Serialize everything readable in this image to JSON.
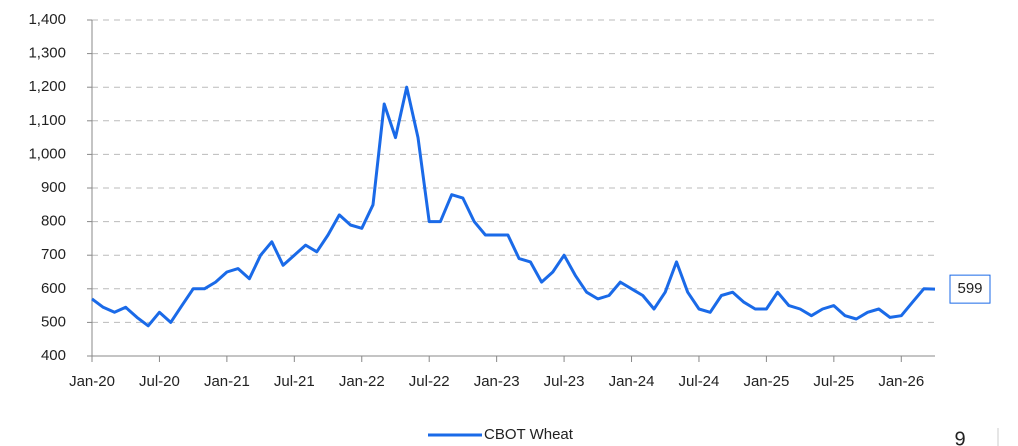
{
  "chart_data": {
    "type": "line",
    "x": [
      "2020-01",
      "2020-02",
      "2020-03",
      "2020-04",
      "2020-05",
      "2020-06",
      "2020-07",
      "2020-08",
      "2020-09",
      "2020-10",
      "2020-11",
      "2020-12",
      "2021-01",
      "2021-02",
      "2021-03",
      "2021-04",
      "2021-05",
      "2021-06",
      "2021-07",
      "2021-08",
      "2021-09",
      "2021-10",
      "2021-11",
      "2021-12",
      "2022-01",
      "2022-02",
      "2022-03",
      "2022-04",
      "2022-05",
      "2022-06",
      "2022-07",
      "2022-08",
      "2022-09",
      "2022-10",
      "2022-11",
      "2022-12",
      "2023-01",
      "2023-02",
      "2023-03",
      "2023-04",
      "2023-05",
      "2023-06",
      "2023-07",
      "2023-08",
      "2023-09",
      "2023-10",
      "2023-11",
      "2023-12",
      "2024-01",
      "2024-02",
      "2024-03",
      "2024-04",
      "2024-05",
      "2024-06",
      "2024-07",
      "2024-08",
      "2024-09",
      "2024-10",
      "2024-11",
      "2024-12",
      "2025-01",
      "2025-02",
      "2025-03",
      "2025-04",
      "2025-05",
      "2025-06",
      "2025-07",
      "2025-08",
      "2025-09",
      "2025-10",
      "2025-11",
      "2025-12",
      "2026-01",
      "2026-02",
      "2026-03",
      "2026-04"
    ],
    "series": [
      {
        "name": "CBOT Wheat",
        "color": "#1a6ae8",
        "values": [
          570,
          545,
          530,
          545,
          515,
          490,
          530,
          500,
          550,
          600,
          600,
          620,
          650,
          660,
          630,
          700,
          740,
          670,
          700,
          730,
          710,
          760,
          820,
          790,
          780,
          850,
          1150,
          1050,
          1200,
          1050,
          800,
          800,
          880,
          870,
          800,
          760,
          760,
          760,
          690,
          680,
          620,
          650,
          700,
          640,
          590,
          570,
          580,
          620,
          600,
          580,
          540,
          590,
          680,
          590,
          540,
          530,
          580,
          590,
          560,
          540,
          540,
          590,
          550,
          540,
          520,
          540,
          550,
          520,
          510,
          530,
          540,
          515,
          520,
          560,
          600,
          599
        ]
      }
    ],
    "xlim": [
      "2020-01",
      "2026-04"
    ],
    "xticks": [
      {
        "value": "2020-01",
        "label": "Jan-20"
      },
      {
        "value": "2020-07",
        "label": "Jul-20"
      },
      {
        "value": "2021-01",
        "label": "Jan-21"
      },
      {
        "value": "2021-07",
        "label": "Jul-21"
      },
      {
        "value": "2022-01",
        "label": "Jan-22"
      },
      {
        "value": "2022-07",
        "label": "Jul-22"
      },
      {
        "value": "2023-01",
        "label": "Jan-23"
      },
      {
        "value": "2023-07",
        "label": "Jul-23"
      },
      {
        "value": "2024-01",
        "label": "Jan-24"
      },
      {
        "value": "2024-07",
        "label": "Jul-24"
      },
      {
        "value": "2025-01",
        "label": "Jan-25"
      },
      {
        "value": "2025-07",
        "label": "Jul-25"
      },
      {
        "value": "2026-01",
        "label": "Jan-26"
      }
    ],
    "ylim": [
      400,
      1400
    ],
    "yticks": [
      400,
      500,
      600,
      700,
      800,
      900,
      {
        "value": 1000,
        "label": "1,000"
      },
      {
        "value": 1100,
        "label": "1,100"
      },
      {
        "value": 1200,
        "label": "1,200"
      },
      {
        "value": 1300,
        "label": "1,300"
      },
      {
        "value": 1400,
        "label": "1,400"
      }
    ],
    "grid": true
  },
  "page_number": "9"
}
